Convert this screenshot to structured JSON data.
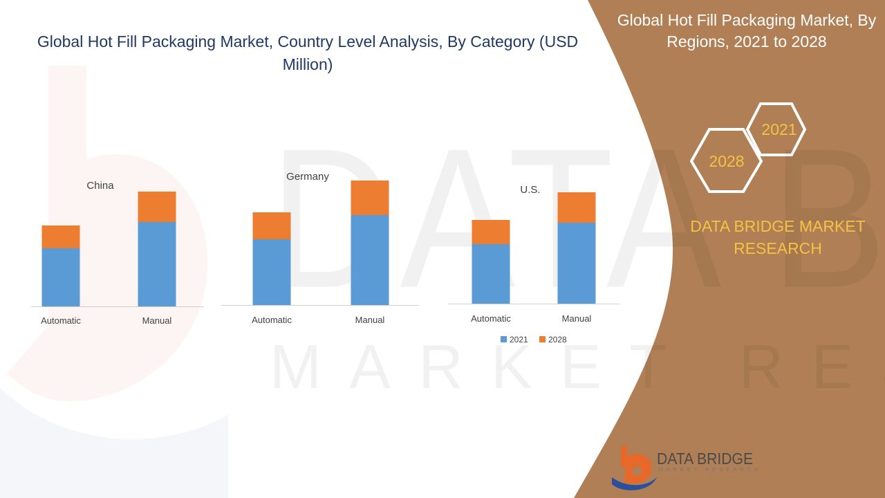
{
  "header": {
    "title": "Global Hot Fill Packaging Market, Country Level Analysis, By Category (USD Million)"
  },
  "side_panel": {
    "title": "Global Hot Fill Packaging Market, By Regions, 2021 to 2028",
    "hex_year_1": "2021",
    "hex_year_2": "2028",
    "brand": "DATA BRIDGE MARKET RESEARCH"
  },
  "watermark": {
    "line1": "DATA BRIDGE",
    "line2": "MARKET RESEARCH"
  },
  "logo": {
    "name": "DATA BRIDGE",
    "subtitle": "MARKET RESEARCH"
  },
  "colors": {
    "series_2021": "#5b9bd5",
    "series_2028": "#ed7d31",
    "panel_brown": "#b07f55",
    "title_navy": "#1f3864",
    "accent_gold": "#f5c242"
  },
  "chart_data": [
    {
      "type": "bar",
      "stacked": true,
      "label": "China",
      "categories": [
        "Automatic",
        "Manual"
      ],
      "series": [
        {
          "name": "2021",
          "values": [
            84,
            122
          ]
        },
        {
          "name": "2028",
          "values": [
            33,
            44
          ]
        }
      ],
      "ylim": [
        0,
        180
      ],
      "grid": false
    },
    {
      "type": "bar",
      "stacked": true,
      "label": "Germany",
      "categories": [
        "Automatic",
        "Manual"
      ],
      "series": [
        {
          "name": "2021",
          "values": [
            95,
            130
          ]
        },
        {
          "name": "2028",
          "values": [
            39,
            50
          ]
        }
      ],
      "ylim": [
        0,
        180
      ],
      "grid": false
    },
    {
      "type": "bar",
      "stacked": true,
      "label": "U.S.",
      "categories": [
        "Automatic",
        "Manual"
      ],
      "series": [
        {
          "name": "2021",
          "values": [
            86,
            117
          ]
        },
        {
          "name": "2028",
          "values": [
            35,
            44
          ]
        }
      ],
      "ylim": [
        0,
        180
      ],
      "grid": false,
      "legend": "bottom"
    }
  ]
}
